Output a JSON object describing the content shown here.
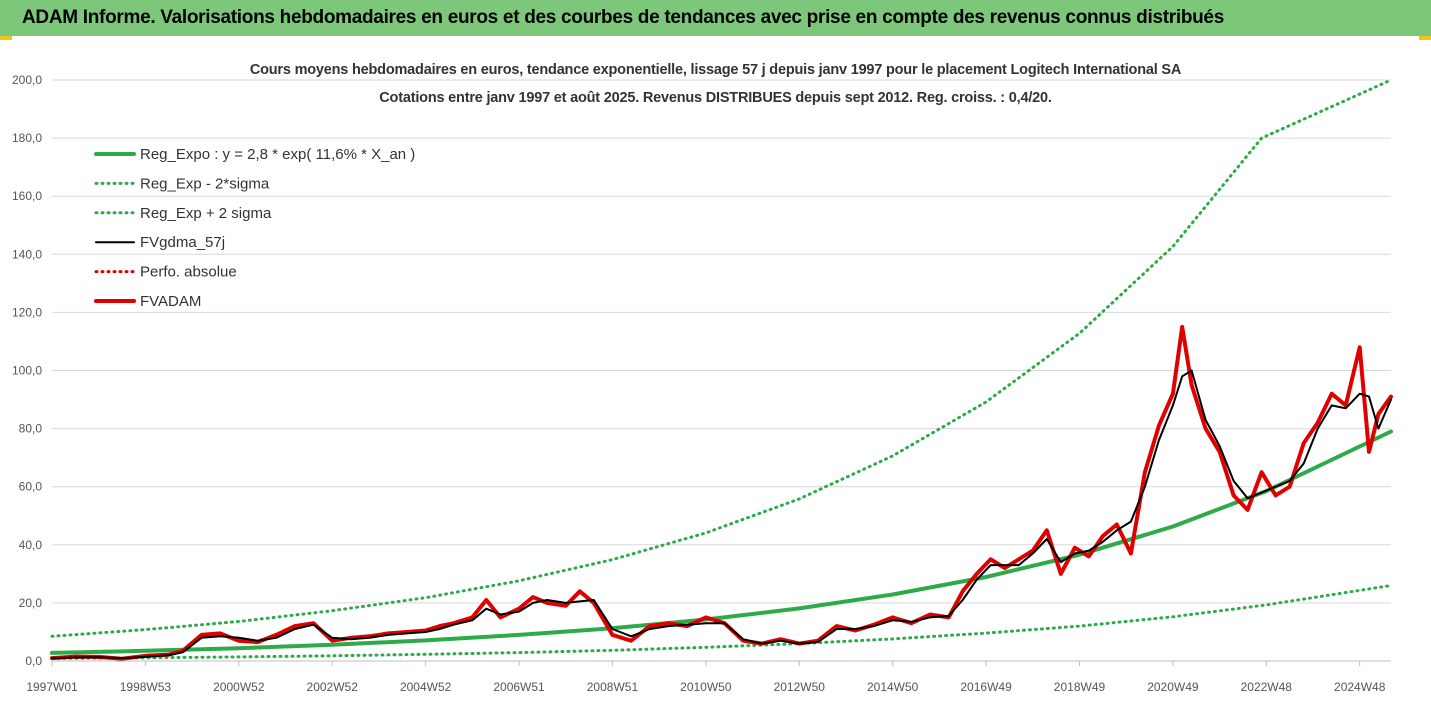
{
  "banner": {
    "title": "ADAM Informe. Valorisations hebdomadaires en euros et des courbes de tendances avec prise en compte des revenus connus distribués"
  },
  "chart_data": {
    "type": "line",
    "title": "Cours moyens hebdomadaires en euros, tendance exponentielle, lissage 57 j depuis janv 1997  pour le placement Logitech International SA",
    "subtitle": "Cotations entre janv 1997 et août 2025. Revenus DISTRIBUES depuis sept 2012. Reg. croiss. : 0,4/20.",
    "xlabel": "",
    "ylabel": "",
    "ylim": [
      0,
      200
    ],
    "yticks": [
      "0,0",
      "20,0",
      "40,0",
      "60,0",
      "80,0",
      "100,0",
      "120,0",
      "140,0",
      "160,0",
      "180,0",
      "200,0"
    ],
    "xlim": [
      1997.0,
      2025.67
    ],
    "xticks": [
      {
        "label": "1997W01",
        "x": 1997.0
      },
      {
        "label": "1998W53",
        "x": 1999.0
      },
      {
        "label": "2000W52",
        "x": 2001.0
      },
      {
        "label": "2002W52",
        "x": 2003.0
      },
      {
        "label": "2004W52",
        "x": 2005.0
      },
      {
        "label": "2006W51",
        "x": 2007.0
      },
      {
        "label": "2008W51",
        "x": 2009.0
      },
      {
        "label": "2010W50",
        "x": 2011.0
      },
      {
        "label": "2012W50",
        "x": 2013.0
      },
      {
        "label": "2014W50",
        "x": 2015.0
      },
      {
        "label": "2016W49",
        "x": 2017.0
      },
      {
        "label": "2018W49",
        "x": 2019.0
      },
      {
        "label": "2020W49",
        "x": 2021.0
      },
      {
        "label": "2022W48",
        "x": 2023.0
      },
      {
        "label": "2024W48",
        "x": 2025.0
      }
    ],
    "grid": true,
    "legend_position": "top-left",
    "series": [
      {
        "name": "Reg_Expo : y = 2,8 * exp( 11,6% *  X_an )",
        "color": "#2eaa4a",
        "style": "solid-thick",
        "x": [
          1997.0,
          1999.0,
          2001.0,
          2003.0,
          2005.0,
          2007.0,
          2009.0,
          2011.0,
          2013.0,
          2015.0,
          2017.0,
          2019.0,
          2021.0,
          2023.0,
          2025.67
        ],
        "y": [
          2.8,
          3.5,
          4.4,
          5.6,
          7.1,
          9.0,
          11.3,
          14.3,
          18.1,
          22.9,
          28.9,
          36.6,
          46.3,
          58.5,
          79.0
        ]
      },
      {
        "name": "Reg_Exp - 2*sigma",
        "color": "#2eaa4a",
        "style": "dotted",
        "x": [
          1997.0,
          1999.0,
          2001.0,
          2003.0,
          2005.0,
          2007.0,
          2009.0,
          2011.0,
          2013.0,
          2015.0,
          2017.0,
          2019.0,
          2021.0,
          2023.0,
          2025.67
        ],
        "y": [
          0.9,
          1.1,
          1.4,
          1.8,
          2.3,
          2.9,
          3.7,
          4.7,
          6.0,
          7.6,
          9.6,
          12.0,
          15.2,
          19.3,
          26.0
        ]
      },
      {
        "name": "Reg_Exp + 2 sigma",
        "color": "#2eaa4a",
        "style": "dotted",
        "x": [
          1997.0,
          1999.0,
          2001.0,
          2003.0,
          2005.0,
          2007.0,
          2009.0,
          2011.0,
          2013.0,
          2015.0,
          2017.0,
          2019.0,
          2021.0,
          2022.9,
          2025.67
        ],
        "y": [
          8.5,
          10.8,
          13.6,
          17.3,
          21.8,
          27.6,
          34.9,
          44.1,
          55.8,
          70.6,
          89.2,
          112.8,
          142.7,
          180.0,
          200.0
        ]
      },
      {
        "name": "FVgdma_57j",
        "color": "#000000",
        "style": "solid",
        "x": [
          1997.0,
          1997.5,
          1998.0,
          1998.5,
          1999.0,
          1999.5,
          1999.8,
          2000.2,
          2000.6,
          2001.0,
          2001.4,
          2001.8,
          2002.2,
          2002.6,
          2003.0,
          2003.4,
          2003.8,
          2004.2,
          2004.6,
          2005.0,
          2005.3,
          2005.6,
          2006.0,
          2006.3,
          2006.6,
          2007.0,
          2007.3,
          2007.6,
          2008.0,
          2008.3,
          2008.6,
          2009.0,
          2009.4,
          2009.8,
          2010.2,
          2010.6,
          2011.0,
          2011.4,
          2011.8,
          2012.2,
          2012.6,
          2013.0,
          2013.4,
          2013.8,
          2014.2,
          2014.6,
          2015.0,
          2015.4,
          2015.8,
          2016.2,
          2016.5,
          2016.8,
          2017.1,
          2017.4,
          2017.7,
          2018.0,
          2018.3,
          2018.6,
          2018.9,
          2019.2,
          2019.5,
          2019.8,
          2020.1,
          2020.4,
          2020.7,
          2021.0,
          2021.2,
          2021.4,
          2021.7,
          2022.0,
          2022.3,
          2022.6,
          2022.9,
          2023.2,
          2023.5,
          2023.8,
          2024.1,
          2024.4,
          2024.7,
          2025.0,
          2025.2,
          2025.4,
          2025.67
        ],
        "y": [
          1.0,
          1.2,
          1.3,
          1.0,
          1.4,
          2.0,
          3.0,
          8.0,
          8.5,
          8.0,
          7.0,
          8.0,
          11.0,
          12.5,
          8.0,
          7.5,
          8.0,
          9.0,
          9.5,
          10.0,
          11.0,
          12.5,
          14.0,
          18.0,
          16.0,
          17.0,
          20.0,
          21.0,
          20.0,
          20.5,
          21.0,
          11.0,
          8.5,
          11.0,
          12.0,
          12.5,
          13.0,
          13.0,
          7.5,
          6.0,
          7.0,
          6.0,
          6.5,
          11.0,
          11.0,
          12.0,
          14.0,
          13.5,
          15.0,
          15.5,
          21.0,
          28.0,
          33.0,
          33.0,
          33.0,
          37.0,
          42.0,
          34.0,
          37.0,
          38.0,
          41.0,
          45.0,
          48.0,
          60.0,
          76.0,
          88.0,
          98.0,
          100.0,
          83.0,
          74.0,
          62.0,
          56.0,
          58.0,
          60.0,
          62.0,
          68.0,
          80.0,
          88.0,
          87.0,
          92.0,
          91.0,
          80.0,
          90.0
        ]
      },
      {
        "name": "Perfo. absolue",
        "color": "#e00000",
        "style": "dotted",
        "x": [],
        "y": []
      },
      {
        "name": "FVADAM",
        "color": "#e00000",
        "style": "solid-thick",
        "x": [
          1997.0,
          1997.5,
          1998.0,
          1998.5,
          1999.0,
          1999.5,
          1999.8,
          2000.2,
          2000.6,
          2001.0,
          2001.4,
          2001.8,
          2002.2,
          2002.6,
          2003.0,
          2003.4,
          2003.8,
          2004.2,
          2004.6,
          2005.0,
          2005.3,
          2005.6,
          2006.0,
          2006.3,
          2006.6,
          2007.0,
          2007.3,
          2007.6,
          2008.0,
          2008.3,
          2008.6,
          2009.0,
          2009.4,
          2009.8,
          2010.2,
          2010.6,
          2011.0,
          2011.4,
          2011.8,
          2012.2,
          2012.6,
          2013.0,
          2013.4,
          2013.8,
          2014.2,
          2014.6,
          2015.0,
          2015.4,
          2015.8,
          2016.2,
          2016.5,
          2016.8,
          2017.1,
          2017.4,
          2017.7,
          2018.0,
          2018.3,
          2018.6,
          2018.9,
          2019.2,
          2019.5,
          2019.8,
          2020.1,
          2020.4,
          2020.7,
          2021.0,
          2021.2,
          2021.4,
          2021.7,
          2022.0,
          2022.3,
          2022.6,
          2022.9,
          2023.2,
          2023.5,
          2023.8,
          2024.1,
          2024.4,
          2024.7,
          2025.0,
          2025.2,
          2025.4,
          2025.67
        ],
        "y": [
          1.0,
          1.5,
          1.4,
          0.8,
          1.8,
          2.2,
          3.5,
          9.0,
          9.5,
          7.0,
          6.5,
          9.0,
          12.0,
          13.0,
          7.0,
          8.0,
          8.5,
          9.5,
          10.0,
          10.5,
          12.0,
          13.0,
          15.0,
          21.0,
          15.0,
          18.0,
          22.0,
          20.0,
          19.0,
          24.0,
          20.0,
          9.0,
          7.0,
          12.0,
          13.0,
          12.0,
          15.0,
          13.0,
          7.0,
          6.0,
          7.5,
          6.0,
          7.0,
          12.0,
          10.5,
          12.5,
          15.0,
          13.0,
          16.0,
          15.0,
          24.0,
          30.0,
          35.0,
          32.0,
          35.0,
          38.0,
          45.0,
          30.0,
          39.0,
          36.0,
          43.0,
          47.0,
          37.0,
          65.0,
          81.0,
          92.0,
          115.0,
          95.0,
          80.0,
          72.0,
          57.0,
          52.0,
          65.0,
          57.0,
          60.0,
          75.0,
          82.0,
          92.0,
          88.0,
          108.0,
          72.0,
          85.0,
          91.0
        ]
      }
    ]
  }
}
